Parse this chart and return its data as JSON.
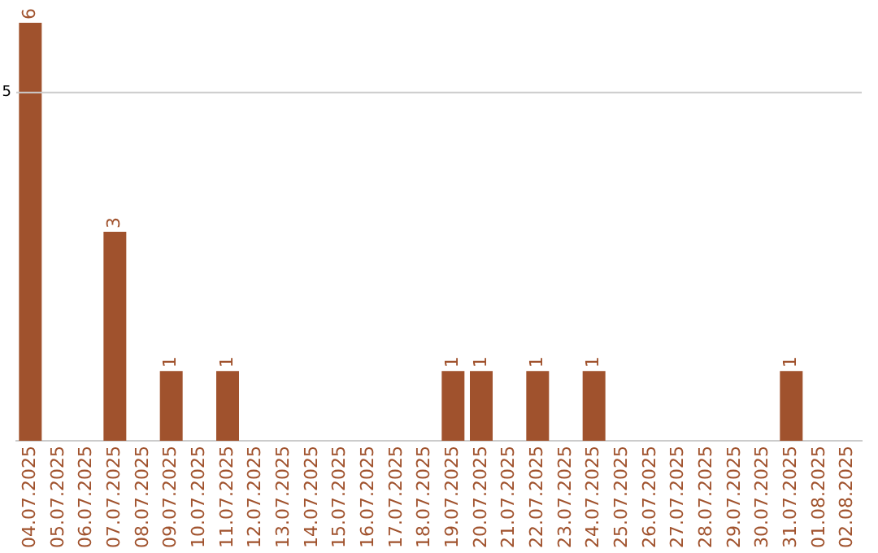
{
  "chart_data": {
    "type": "bar",
    "categories": [
      "04.07.2025",
      "05.07.2025",
      "06.07.2025",
      "07.07.2025",
      "08.07.2025",
      "09.07.2025",
      "10.07.2025",
      "11.07.2025",
      "12.07.2025",
      "13.07.2025",
      "14.07.2025",
      "15.07.2025",
      "16.07.2025",
      "17.07.2025",
      "18.07.2025",
      "19.07.2025",
      "20.07.2025",
      "21.07.2025",
      "22.07.2025",
      "23.07.2025",
      "24.07.2025",
      "25.07.2025",
      "26.07.2025",
      "27.07.2025",
      "28.07.2025",
      "29.07.2025",
      "30.07.2025",
      "31.07.2025",
      "01.08.2025",
      "02.08.2025"
    ],
    "values": [
      6,
      0,
      0,
      3,
      0,
      1,
      0,
      1,
      0,
      0,
      0,
      0,
      0,
      0,
      0,
      1,
      1,
      0,
      1,
      0,
      1,
      0,
      0,
      0,
      0,
      0,
      0,
      1,
      0,
      0
    ],
    "value_labels": [
      "6",
      null,
      null,
      "3",
      null,
      "1",
      null,
      "1",
      null,
      null,
      null,
      null,
      null,
      null,
      null,
      "1",
      "1",
      null,
      "1",
      null,
      "1",
      null,
      null,
      null,
      null,
      null,
      null,
      "1",
      null,
      null
    ],
    "color": "#a0522d",
    "ref_lines": [
      {
        "axis": "y",
        "value": 5,
        "label": "5",
        "color": "#cccccc"
      }
    ]
  }
}
